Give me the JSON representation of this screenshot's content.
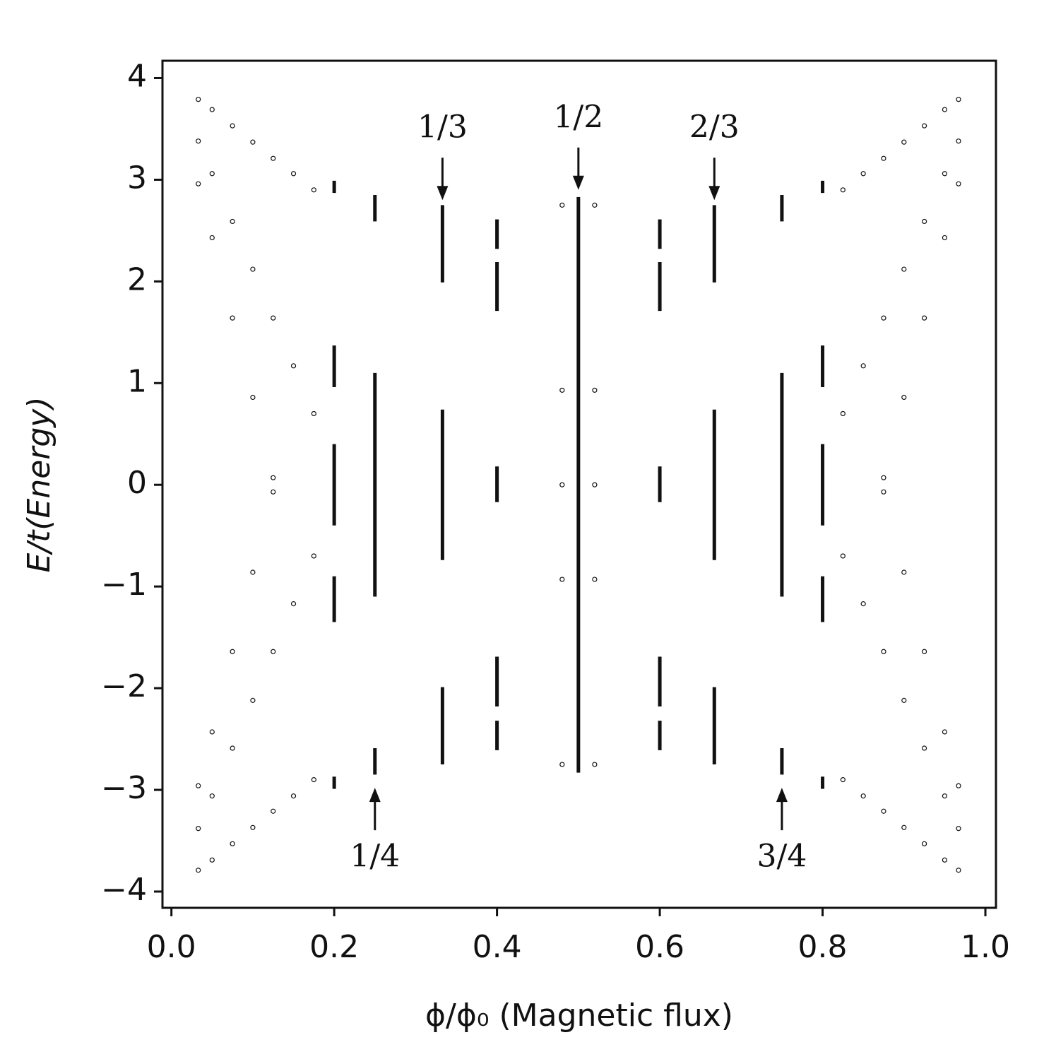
{
  "chart_data": {
    "type": "scatter",
    "xlabel": "ϕ/ϕ₀ (Magnetic flux)",
    "ylabel": "E/t(Energy)",
    "xlim": [
      -0.011,
      1.013
    ],
    "ylim": [
      -4.16,
      4.17
    ],
    "xticks": [
      {
        "value": 0,
        "label": "0.0"
      },
      0.2,
      0.4,
      0.6,
      0.8,
      {
        "value": 1,
        "label": "1.0"
      }
    ],
    "yticks": [
      {
        "value": -4,
        "label": "−4"
      },
      {
        "value": -3,
        "label": "−3"
      },
      {
        "value": -2,
        "label": "−2"
      },
      {
        "value": -1,
        "label": "−1"
      },
      0,
      1,
      2,
      3,
      4
    ],
    "color": "#111111",
    "x": [
      0.033,
      0.05,
      0.075,
      0.1,
      0.125,
      0.15,
      0.175,
      0.033,
      0.05,
      0.075,
      0.1,
      0.125,
      0.15,
      0.175,
      0.033,
      0.05,
      0.075,
      0.1,
      0.125,
      0.033,
      0.05,
      0.075,
      0.1,
      0.125,
      0.15,
      0.175,
      0.033,
      0.05,
      0.075,
      0.1,
      0.125,
      0.15,
      0.175,
      0.033,
      0.05,
      0.075,
      0.1,
      0.125,
      0.967,
      0.95,
      0.925,
      0.9,
      0.875,
      0.85,
      0.825,
      0.967,
      0.95,
      0.925,
      0.9,
      0.875,
      0.85,
      0.825,
      0.967,
      0.95,
      0.925,
      0.9,
      0.875,
      0.967,
      0.95,
      0.925,
      0.9,
      0.875,
      0.85,
      0.825,
      0.967,
      0.95,
      0.925,
      0.9,
      0.875,
      0.85,
      0.825,
      0.967,
      0.95,
      0.925,
      0.9,
      0.875,
      0.48,
      0.48,
      0.52,
      0.52,
      0.48,
      0.52,
      0.48,
      0.52,
      0.48,
      0.52
    ],
    "y": [
      -3.79,
      -3.69,
      -3.53,
      -3.37,
      -3.21,
      -3.06,
      -2.9,
      -3.38,
      -3.06,
      -2.59,
      -2.12,
      -1.64,
      -1.17,
      -0.7,
      -2.96,
      -2.43,
      -1.64,
      -0.86,
      -0.07,
      3.79,
      3.69,
      3.53,
      3.37,
      3.21,
      3.06,
      2.9,
      3.38,
      3.06,
      2.59,
      2.12,
      1.64,
      1.17,
      0.7,
      2.96,
      2.43,
      1.64,
      0.86,
      0.07,
      -3.79,
      -3.69,
      -3.53,
      -3.37,
      -3.21,
      -3.06,
      -2.9,
      -3.38,
      -3.06,
      -2.59,
      -2.12,
      -1.64,
      -1.17,
      -0.7,
      -2.96,
      -2.43,
      -1.64,
      -0.86,
      -0.07,
      3.79,
      3.69,
      3.53,
      3.37,
      3.21,
      3.06,
      2.9,
      3.38,
      3.06,
      2.59,
      2.12,
      1.64,
      1.17,
      0.7,
      2.96,
      2.43,
      1.64,
      0.86,
      0.07,
      0.93,
      -0.93,
      0.93,
      -0.93,
      0,
      0,
      2.75,
      2.75,
      -2.75,
      -2.75
    ],
    "bands": [
      {
        "x": 0.5,
        "ymin": -2.83,
        "ymax": 2.83
      },
      {
        "x": 0.333,
        "ymin": 1.99,
        "ymax": 2.75
      },
      {
        "x": 0.333,
        "ymin": -0.74,
        "ymax": 0.74
      },
      {
        "x": 0.333,
        "ymin": -2.75,
        "ymax": -1.99
      },
      {
        "x": 0.667,
        "ymin": 1.99,
        "ymax": 2.75
      },
      {
        "x": 0.667,
        "ymin": -0.74,
        "ymax": 0.74
      },
      {
        "x": 0.667,
        "ymin": -2.75,
        "ymax": -1.99
      },
      {
        "x": 0.25,
        "ymin": 2.59,
        "ymax": 2.85
      },
      {
        "x": 0.25,
        "ymin": -1.1,
        "ymax": 1.1
      },
      {
        "x": 0.25,
        "ymin": -2.85,
        "ymax": -2.59
      },
      {
        "x": 0.75,
        "ymin": 2.59,
        "ymax": 2.85
      },
      {
        "x": 0.75,
        "ymin": -1.1,
        "ymax": 1.1
      },
      {
        "x": 0.75,
        "ymin": -2.85,
        "ymax": -2.59
      },
      {
        "x": 0.2,
        "ymin": 2.87,
        "ymax": 2.99
      },
      {
        "x": 0.2,
        "ymin": 0.96,
        "ymax": 1.37
      },
      {
        "x": 0.2,
        "ymin": -0.4,
        "ymax": 0.4
      },
      {
        "x": 0.2,
        "ymin": -1.35,
        "ymax": -0.9
      },
      {
        "x": 0.2,
        "ymin": -2.99,
        "ymax": -2.87
      },
      {
        "x": 0.8,
        "ymin": 2.87,
        "ymax": 2.99
      },
      {
        "x": 0.8,
        "ymin": 0.96,
        "ymax": 1.37
      },
      {
        "x": 0.8,
        "ymin": -0.4,
        "ymax": 0.4
      },
      {
        "x": 0.8,
        "ymin": -1.35,
        "ymax": -0.9
      },
      {
        "x": 0.8,
        "ymin": -2.99,
        "ymax": -2.87
      },
      {
        "x": 0.4,
        "ymin": 2.32,
        "ymax": 2.61
      },
      {
        "x": 0.4,
        "ymin": 1.71,
        "ymax": 2.19
      },
      {
        "x": 0.4,
        "ymin": -0.17,
        "ymax": 0.18
      },
      {
        "x": 0.4,
        "ymin": -2.18,
        "ymax": -1.69
      },
      {
        "x": 0.4,
        "ymin": -2.61,
        "ymax": -2.32
      },
      {
        "x": 0.6,
        "ymin": 2.32,
        "ymax": 2.61
      },
      {
        "x": 0.6,
        "ymin": 1.71,
        "ymax": 2.19
      },
      {
        "x": 0.6,
        "ymin": -0.17,
        "ymax": 0.18
      },
      {
        "x": 0.6,
        "ymin": -2.18,
        "ymax": -1.69
      },
      {
        "x": 0.6,
        "ymin": -2.61,
        "ymax": -2.32
      }
    ],
    "annotations": [
      {
        "text": "1/3",
        "x": 0.333,
        "y": 2.8,
        "dir": "down"
      },
      {
        "text": "1/2",
        "x": 0.5,
        "y": 2.9,
        "dir": "down"
      },
      {
        "text": "2/3",
        "x": 0.667,
        "y": 2.8,
        "dir": "down"
      },
      {
        "text": "1/4",
        "x": 0.25,
        "y": -2.98,
        "dir": "up"
      },
      {
        "text": "3/4",
        "x": 0.75,
        "y": -2.98,
        "dir": "up"
      }
    ]
  }
}
